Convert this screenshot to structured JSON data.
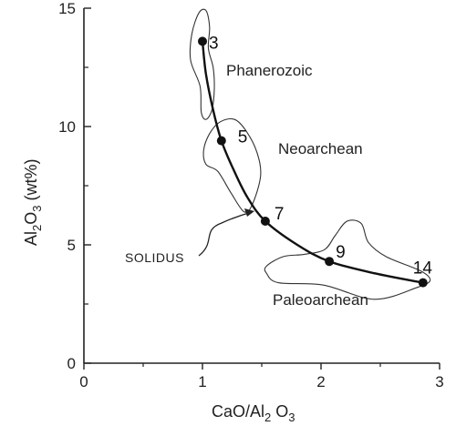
{
  "chart_data": {
    "type": "scatter",
    "x_axis": {
      "label_main": "CaO/Al",
      "label_sub": "2",
      "label_tail": " O",
      "label_sub2": "3",
      "range": [
        0,
        3
      ],
      "ticks": [
        "0",
        "1",
        "2",
        "3"
      ]
    },
    "y_axis": {
      "label_main": "Al",
      "label_sub": "2",
      "label_tail": "O",
      "label_sub2": "3",
      "label_end": " (wt%)",
      "range": [
        0,
        15
      ],
      "ticks": [
        "0",
        "5",
        "10",
        "15"
      ]
    },
    "points": [
      {
        "label": "3",
        "x": 1.0,
        "y": 13.6
      },
      {
        "label": "5",
        "x": 1.16,
        "y": 9.4
      },
      {
        "label": "7",
        "x": 1.53,
        "y": 6.0
      },
      {
        "label": "9",
        "x": 2.07,
        "y": 4.3
      },
      {
        "label": "14",
        "x": 2.86,
        "y": 3.4
      }
    ],
    "curve": [
      [
        1.0,
        13.6
      ],
      [
        1.03,
        12.2
      ],
      [
        1.09,
        10.7
      ],
      [
        1.16,
        9.4
      ],
      [
        1.26,
        8.2
      ],
      [
        1.38,
        7.0
      ],
      [
        1.53,
        6.0
      ],
      [
        1.8,
        5.0
      ],
      [
        2.07,
        4.3
      ],
      [
        2.45,
        3.8
      ],
      [
        2.86,
        3.4
      ]
    ],
    "regions": [
      {
        "name": "Phanerozoic",
        "outline": [
          [
            0.97,
            14.8
          ],
          [
            1.03,
            14.9
          ],
          [
            1.06,
            14.2
          ],
          [
            1.05,
            13.3
          ],
          [
            1.09,
            12.5
          ],
          [
            1.1,
            11.6
          ],
          [
            1.08,
            10.7
          ],
          [
            1.03,
            10.3
          ],
          [
            0.99,
            10.6
          ],
          [
            0.98,
            11.7
          ],
          [
            0.9,
            12.8
          ],
          [
            0.91,
            13.9
          ]
        ]
      },
      {
        "name": "Neoarchean",
        "outline": [
          [
            1.15,
            10.2
          ],
          [
            1.27,
            10.3
          ],
          [
            1.37,
            9.8
          ],
          [
            1.46,
            8.9
          ],
          [
            1.49,
            7.9
          ],
          [
            1.42,
            6.7
          ],
          [
            1.35,
            6.4
          ],
          [
            1.24,
            7.2
          ],
          [
            1.13,
            8.1
          ],
          [
            1.03,
            8.4
          ],
          [
            1.01,
            9.0
          ],
          [
            1.06,
            9.7
          ]
        ]
      },
      {
        "name": "Paleoarchean",
        "outline": [
          [
            1.54,
            4.1
          ],
          [
            1.68,
            4.5
          ],
          [
            1.86,
            4.6
          ],
          [
            2.03,
            4.8
          ],
          [
            2.12,
            5.4
          ],
          [
            2.22,
            6.0
          ],
          [
            2.34,
            5.9
          ],
          [
            2.4,
            5.1
          ],
          [
            2.55,
            4.5
          ],
          [
            2.84,
            3.9
          ],
          [
            2.92,
            3.5
          ],
          [
            2.81,
            3.2
          ],
          [
            2.45,
            2.7
          ],
          [
            2.02,
            3.3
          ],
          [
            1.64,
            3.4
          ],
          [
            1.54,
            3.8
          ]
        ]
      }
    ],
    "region_labels": {
      "phanerozoic": "Phanerozoic",
      "neoarchean": "Neoarchean",
      "paleoarchean": "Paleoarchean"
    },
    "annotation": {
      "text": "SOLIDUS",
      "target": [
        1.41,
        6.3
      ]
    },
    "grid": false
  }
}
